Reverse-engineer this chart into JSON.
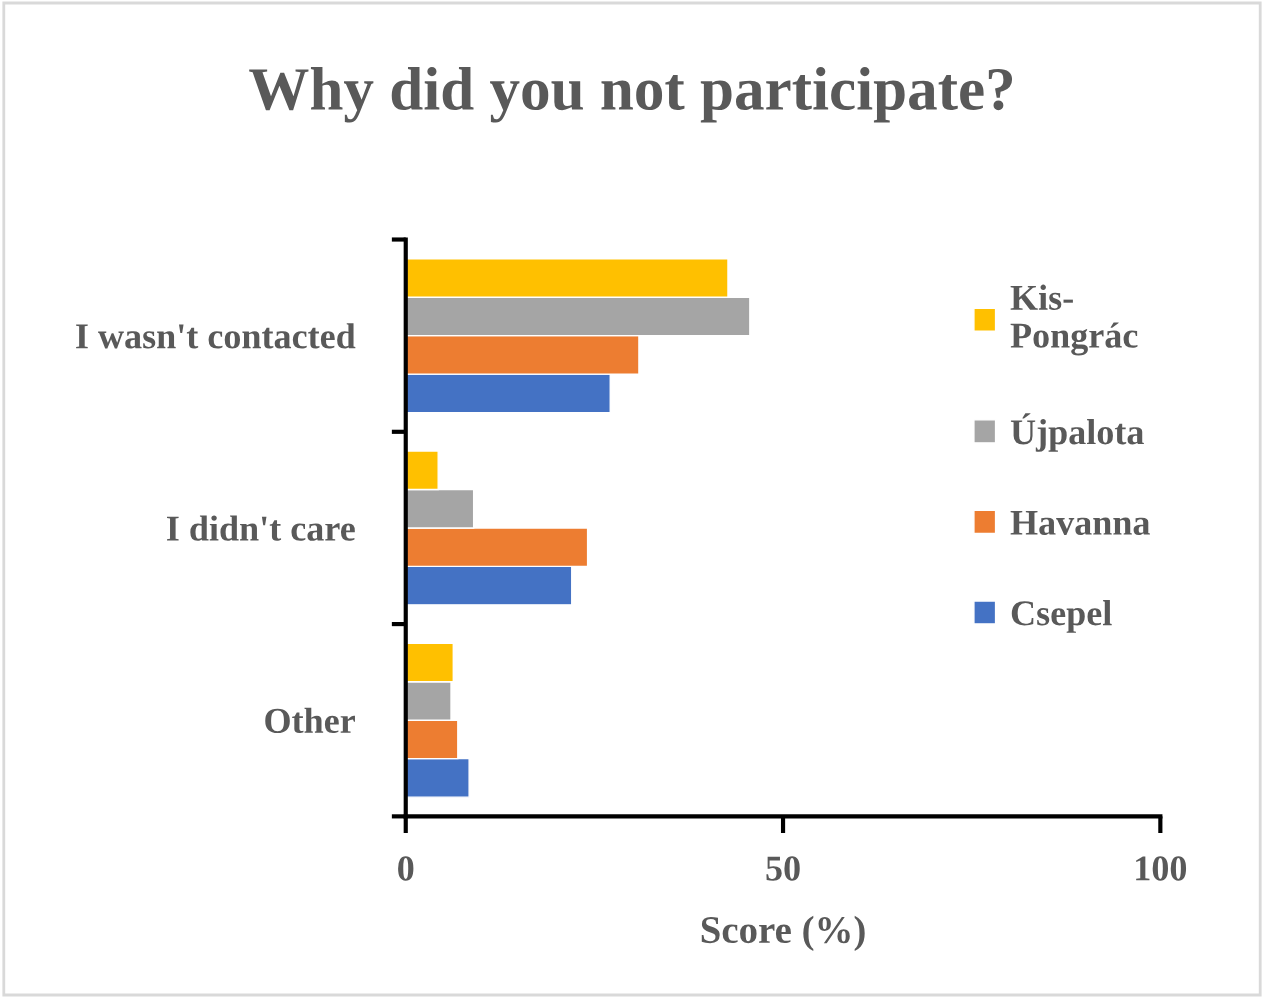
{
  "chart_data": {
    "type": "bar",
    "orientation": "horizontal",
    "title": "Why did you not participate?",
    "xlabel": "Score (%)",
    "categories": [
      "I wasn't contacted",
      "I didn't care",
      "Other"
    ],
    "series": [
      {
        "name": "Csepel",
        "color": "#4472c4",
        "values": [
          27.1,
          22.0,
          8.4
        ]
      },
      {
        "name": "Havanna",
        "color": "#ed7d31",
        "values": [
          30.9,
          24.1,
          6.9
        ]
      },
      {
        "name": "Újpalota",
        "color": "#a5a5a5",
        "values": [
          45.6,
          9.0,
          6.0
        ]
      },
      {
        "name": "Kis-\nPongrác",
        "color": "#ffc000",
        "values": [
          42.7,
          4.3,
          6.3
        ]
      }
    ],
    "xlim": [
      0,
      100
    ],
    "xticks": [
      0,
      50,
      100
    ],
    "grid": false,
    "legend": "right"
  }
}
